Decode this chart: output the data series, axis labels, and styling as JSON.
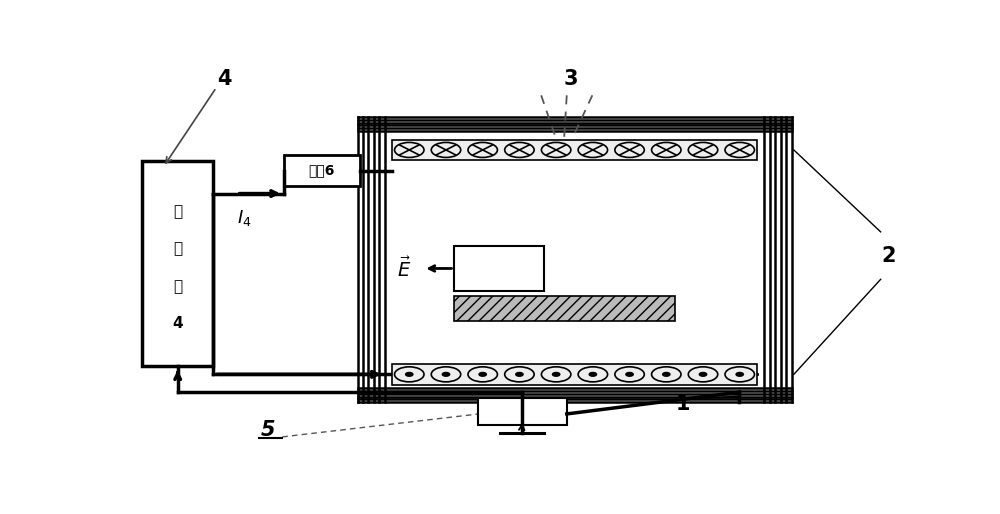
{
  "bg_color": "#ffffff",
  "line_color": "#000000",
  "ps_text_lines": [
    "电",
    "流",
    "源",
    "4"
  ],
  "load_text": "负载6",
  "label_4": "4",
  "label_3": "3",
  "label_2": "2",
  "label_1": "1",
  "label_5": "5"
}
